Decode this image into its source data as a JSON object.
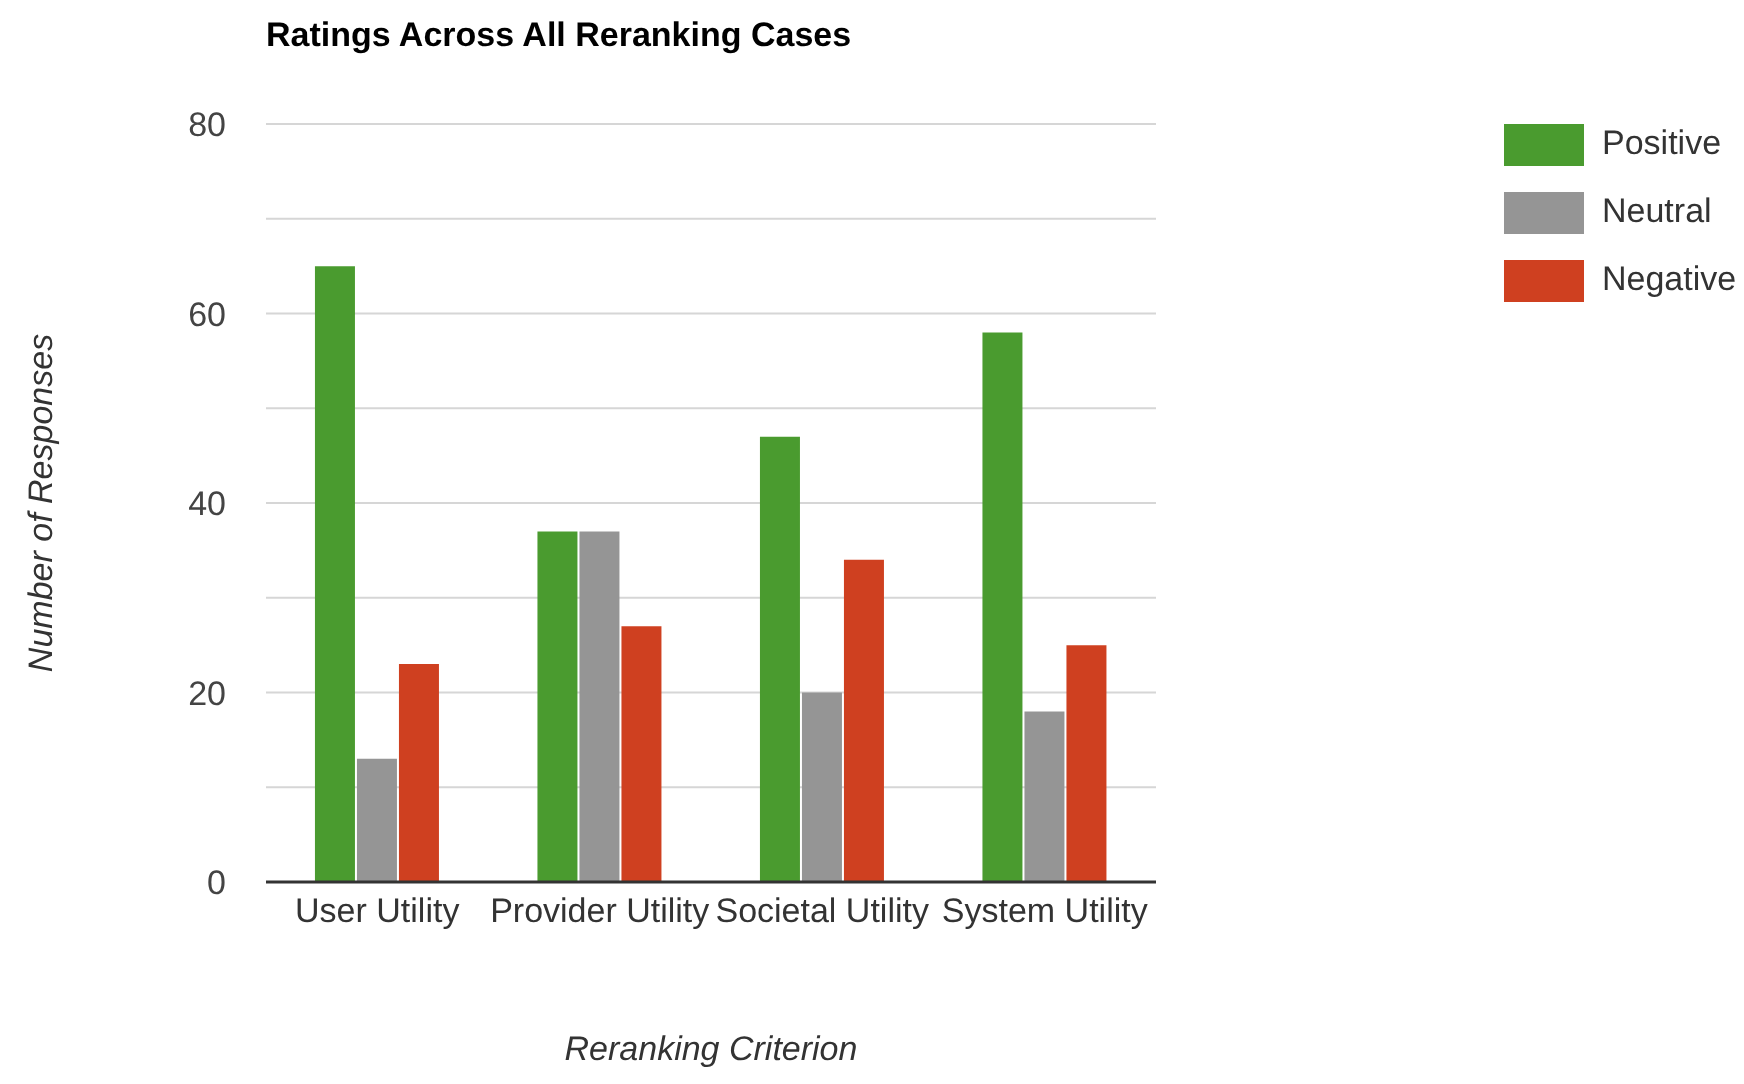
{
  "chart_data": {
    "type": "bar",
    "title": "Ratings Across All Reranking Cases",
    "xlabel": "Reranking Criterion",
    "ylabel": "Number of Responses",
    "categories": [
      "User Utility",
      "Provider Utility",
      "Societal Utility",
      "System Utility"
    ],
    "series": [
      {
        "name": "Positive",
        "color": "#4a9b2f",
        "values": [
          65,
          37,
          47,
          58
        ]
      },
      {
        "name": "Neutral",
        "color": "#959595",
        "values": [
          13,
          37,
          20,
          18
        ]
      },
      {
        "name": "Negative",
        "color": "#cf4020",
        "values": [
          23,
          27,
          34,
          25
        ]
      }
    ],
    "ylim": [
      0,
      80
    ],
    "yticks": [
      0,
      {
        "value": 10,
        "label": null
      },
      20,
      {
        "value": 30,
        "label": null
      },
      40,
      {
        "value": 50,
        "label": null
      },
      60,
      {
        "value": 70,
        "label": null
      },
      80
    ],
    "grid": "y",
    "legend": "top right"
  }
}
